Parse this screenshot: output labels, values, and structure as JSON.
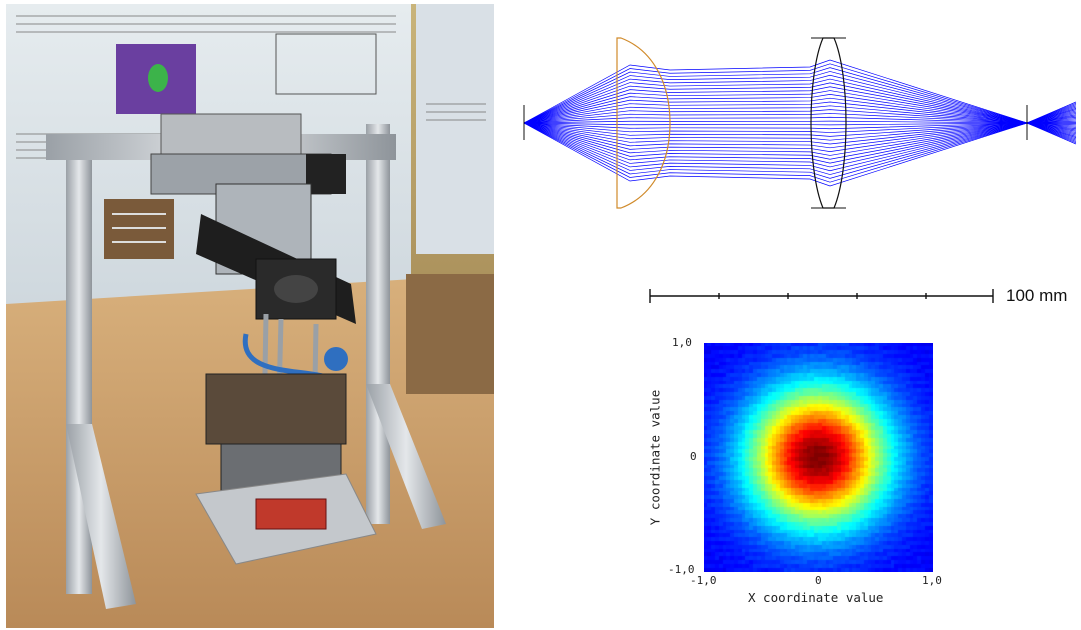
{
  "photo": {
    "description_icon": "laser-apparatus-photo",
    "colors": {
      "wall": "#b9a26a",
      "table": "#c9a06e",
      "aluminium": "#c8ccd0",
      "dark": "#2a2a2a",
      "blue_pipe": "#2f6fc0"
    }
  },
  "raytrace": {
    "ray_color": "#0000ff",
    "lens1_color": "#d08a2a",
    "lens2_color": "#111111"
  },
  "scale": {
    "label": "100 mm"
  },
  "heatmap": {
    "xlabel": "X coordinate value",
    "ylabel": "Y coordinate value",
    "x_ticks": [
      "-1,0",
      "0",
      "1,0"
    ],
    "y_ticks": [
      "1,0",
      "0",
      "-1,0"
    ],
    "xlim": [
      -1.0,
      1.0
    ],
    "ylim": [
      -1.0,
      1.0
    ],
    "colormap": "jet"
  },
  "chart_data": {
    "type": "heatmap",
    "xlabel": "X coordinate value",
    "ylabel": "Y coordinate value",
    "xlim": [
      -1.0,
      1.0
    ],
    "ylim": [
      -1.0,
      1.0
    ],
    "x_ticks": [
      "-1,0",
      "0",
      "1,0"
    ],
    "y_ticks": [
      "1,0",
      "0",
      "-1,0"
    ],
    "center": [
      0.0,
      0.0
    ],
    "profile": "gaussian",
    "sigma": 0.42,
    "grid": 60
  }
}
